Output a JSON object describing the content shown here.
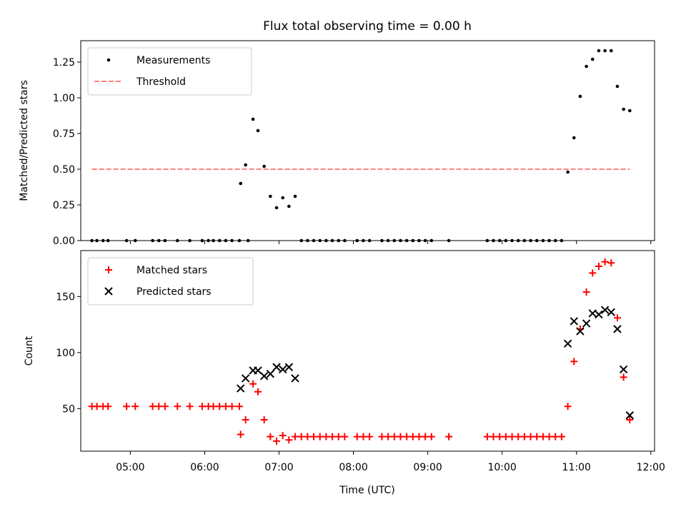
{
  "figure": {
    "title": "Flux total observing time = 0.00 h",
    "xlabel": "Time (UTC)",
    "x_ticks": [
      "05:00",
      "06:00",
      "07:00",
      "08:00",
      "09:00",
      "10:00",
      "11:00",
      "12:00"
    ]
  },
  "colors": {
    "measurements": "#000000",
    "threshold": "#ff8080",
    "matched": "#ff0000",
    "predicted": "#000000"
  },
  "chart_data": [
    {
      "type": "scatter",
      "ylabel": "Matched/Predicted stars",
      "xlim": [
        "04:20",
        "12:03"
      ],
      "ylim": [
        0,
        1.4
      ],
      "y_ticks": [
        "0.00",
        "0.25",
        "0.50",
        "0.75",
        "1.00",
        "1.25"
      ],
      "legend_position": "top-left",
      "series": [
        {
          "name": "Measurements",
          "marker": "dot",
          "x": [
            "04:29",
            "04:33",
            "04:38",
            "04:42",
            "04:57",
            "05:04",
            "05:18",
            "05:23",
            "05:28",
            "05:38",
            "05:48",
            "05:58",
            "06:03",
            "06:07",
            "06:12",
            "06:17",
            "06:22",
            "06:28",
            "06:35",
            "06:29",
            "06:33",
            "06:39",
            "06:43",
            "06:48",
            "06:53",
            "06:58",
            "07:03",
            "07:08",
            "07:13",
            "07:18",
            "07:23",
            "07:28",
            "07:33",
            "07:38",
            "07:43",
            "07:48",
            "07:53",
            "08:03",
            "08:08",
            "08:13",
            "08:23",
            "08:28",
            "08:33",
            "08:38",
            "08:43",
            "08:48",
            "08:53",
            "08:58",
            "09:03",
            "09:17",
            "09:48",
            "09:53",
            "09:58",
            "10:03",
            "10:08",
            "10:13",
            "10:18",
            "10:23",
            "10:28",
            "10:33",
            "10:38",
            "10:43",
            "10:48",
            "10:53",
            "10:58",
            "11:03",
            "11:08",
            "11:13",
            "11:18",
            "11:23",
            "11:28",
            "11:33",
            "11:38",
            "11:43"
          ],
          "y": [
            0,
            0,
            0,
            0,
            0,
            0,
            0,
            0,
            0,
            0,
            0,
            0,
            0,
            0,
            0,
            0,
            0,
            0,
            0,
            0.4,
            0.53,
            0.85,
            0.77,
            0.52,
            0.31,
            0.23,
            0.3,
            0.24,
            0.31,
            0,
            0,
            0,
            0,
            0,
            0,
            0,
            0,
            0,
            0,
            0,
            0,
            0,
            0,
            0,
            0,
            0,
            0,
            0,
            0,
            0,
            0,
            0,
            0,
            0,
            0,
            0,
            0,
            0,
            0,
            0,
            0,
            0,
            0,
            0.48,
            0.72,
            1.01,
            1.22,
            1.27,
            1.33,
            1.33,
            1.33,
            1.08,
            0.92,
            0.91
          ]
        },
        {
          "name": "Threshold",
          "style": "dashed",
          "x": [
            "04:29",
            "11:43"
          ],
          "y": [
            0.5,
            0.5
          ]
        }
      ]
    },
    {
      "type": "scatter",
      "ylabel": "Count",
      "xlim": [
        "04:20",
        "12:03"
      ],
      "ylim": [
        12,
        191
      ],
      "y_ticks": [
        "50",
        "100",
        "150"
      ],
      "legend_position": "top-left",
      "series": [
        {
          "name": "Matched stars",
          "marker": "plus",
          "x": [
            "04:29",
            "04:33",
            "04:38",
            "04:42",
            "04:57",
            "05:04",
            "05:18",
            "05:23",
            "05:28",
            "05:38",
            "05:48",
            "05:58",
            "06:03",
            "06:07",
            "06:12",
            "06:17",
            "06:22",
            "06:28",
            "06:29",
            "06:33",
            "06:39",
            "06:43",
            "06:48",
            "06:53",
            "06:58",
            "07:03",
            "07:08",
            "07:13",
            "07:18",
            "07:23",
            "07:28",
            "07:33",
            "07:38",
            "07:43",
            "07:48",
            "07:53",
            "08:03",
            "08:08",
            "08:13",
            "08:23",
            "08:28",
            "08:33",
            "08:38",
            "08:43",
            "08:48",
            "08:53",
            "08:58",
            "09:03",
            "09:17",
            "09:48",
            "09:53",
            "09:58",
            "10:03",
            "10:08",
            "10:13",
            "10:18",
            "10:23",
            "10:28",
            "10:33",
            "10:38",
            "10:43",
            "10:48",
            "10:53",
            "10:58",
            "11:03",
            "11:08",
            "11:13",
            "11:18",
            "11:23",
            "11:28",
            "11:33",
            "11:38",
            "11:43"
          ],
          "y": [
            52,
            52,
            52,
            52,
            52,
            52,
            52,
            52,
            52,
            52,
            52,
            52,
            52,
            52,
            52,
            52,
            52,
            52,
            27,
            40,
            72,
            65,
            40,
            25,
            21,
            26,
            22,
            25,
            25,
            25,
            25,
            25,
            25,
            25,
            25,
            25,
            25,
            25,
            25,
            25,
            25,
            25,
            25,
            25,
            25,
            25,
            25,
            25,
            25,
            25,
            25,
            25,
            25,
            25,
            25,
            25,
            25,
            25,
            25,
            25,
            25,
            25,
            52,
            92,
            121,
            154,
            171,
            177,
            181,
            180,
            131,
            78,
            40
          ]
        },
        {
          "name": "Predicted stars",
          "marker": "x",
          "x": [
            "06:29",
            "06:33",
            "06:39",
            "06:43",
            "06:48",
            "06:53",
            "06:58",
            "07:03",
            "07:08",
            "07:13",
            "10:53",
            "10:58",
            "11:03",
            "11:08",
            "11:13",
            "11:18",
            "11:23",
            "11:28",
            "11:33",
            "11:38",
            "11:43"
          ],
          "y": [
            68,
            77,
            84,
            84,
            79,
            81,
            87,
            85,
            87,
            77,
            108,
            128,
            119,
            126,
            135,
            134,
            138,
            136,
            121,
            85,
            44
          ]
        }
      ]
    }
  ]
}
